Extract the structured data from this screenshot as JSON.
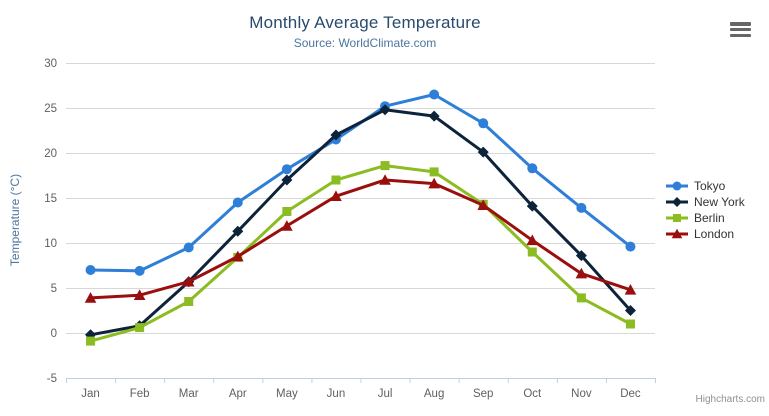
{
  "chart_data": {
    "type": "line",
    "title": "Monthly Average Temperature",
    "subtitle": "Source: WorldClimate.com",
    "xlabel": "",
    "ylabel": "Temperature (°C)",
    "categories": [
      "Jan",
      "Feb",
      "Mar",
      "Apr",
      "May",
      "Jun",
      "Jul",
      "Aug",
      "Sep",
      "Oct",
      "Nov",
      "Dec"
    ],
    "ylim": [
      -5,
      30
    ],
    "ytick_interval": 5,
    "yticks": [
      -5,
      0,
      5,
      10,
      15,
      20,
      25,
      30
    ],
    "grid": "horizontal",
    "legend_position": "right",
    "background_color": "#ffffff",
    "axis_line_color": "#c0d0e0",
    "gridline_color": "#d8d8d8",
    "axis_label_color": "#606060",
    "credits": "Highcharts.com",
    "series": [
      {
        "name": "Tokyo",
        "color": "#2f7ed8",
        "marker": "circle",
        "values": [
          7.0,
          6.9,
          9.5,
          14.5,
          18.2,
          21.5,
          25.2,
          26.5,
          23.3,
          18.3,
          13.9,
          9.6
        ]
      },
      {
        "name": "New York",
        "color": "#0d233a",
        "marker": "diamond",
        "values": [
          -0.2,
          0.8,
          5.7,
          11.3,
          17.0,
          22.0,
          24.8,
          24.1,
          20.1,
          14.1,
          8.6,
          2.5
        ]
      },
      {
        "name": "Berlin",
        "color": "#8bbc21",
        "marker": "square",
        "values": [
          -0.9,
          0.6,
          3.5,
          8.4,
          13.5,
          17.0,
          18.6,
          17.9,
          14.3,
          9.0,
          3.9,
          1.0
        ]
      },
      {
        "name": "London",
        "color": "#9a0e0e",
        "marker": "triangle",
        "values": [
          3.9,
          4.2,
          5.7,
          8.5,
          11.9,
          15.2,
          17.0,
          16.6,
          14.2,
          10.3,
          6.6,
          4.8
        ]
      }
    ]
  }
}
